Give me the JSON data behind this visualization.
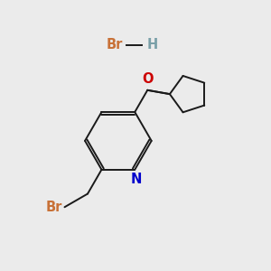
{
  "bg_color": "#ebebeb",
  "br_color": "#c87137",
  "h_color": "#7aa0a8",
  "o_color": "#cc0000",
  "n_color": "#0000cc",
  "bond_color": "#1a1a1a",
  "line_width": 1.4,
  "font_size": 10.5,
  "hbr_br_text": "Br",
  "hbr_h_text": "H",
  "o_text": "O",
  "n_text": "N",
  "br_text": "Br"
}
